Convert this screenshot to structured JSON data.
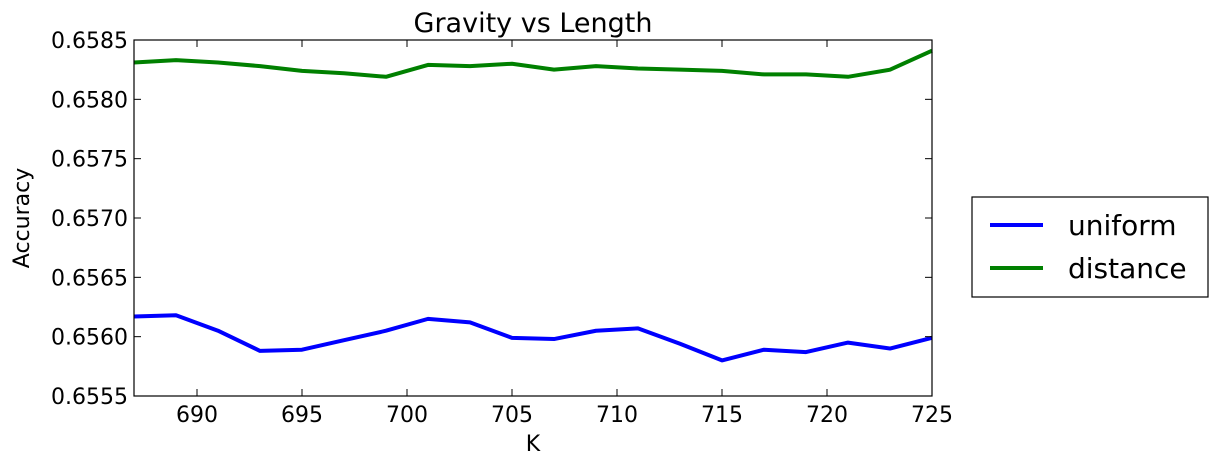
{
  "chart_data": {
    "type": "line",
    "title": "Gravity vs Length",
    "xlabel": "K",
    "ylabel": "Accuracy",
    "xlim": [
      687,
      725
    ],
    "ylim": [
      0.6555,
      0.6585
    ],
    "x_ticks": [
      "690",
      "695",
      "700",
      "705",
      "710",
      "715",
      "720",
      "725"
    ],
    "y_ticks": [
      "0.6555",
      "0.6560",
      "0.6565",
      "0.6570",
      "0.6575",
      "0.6580",
      "0.6585"
    ],
    "grid": false,
    "legend_position": "right, outside plot",
    "x": [
      687,
      689,
      691,
      693,
      695,
      697,
      699,
      701,
      703,
      705,
      707,
      709,
      711,
      713,
      715,
      717,
      719,
      721,
      723,
      725
    ],
    "series": [
      {
        "name": "uniform",
        "color": "#0000ff",
        "values": [
          0.65617,
          0.65618,
          0.65605,
          0.65588,
          0.65589,
          0.65597,
          0.65605,
          0.65615,
          0.65612,
          0.65599,
          0.65598,
          0.65605,
          0.65607,
          0.65594,
          0.6558,
          0.65589,
          0.65587,
          0.65595,
          0.6559,
          0.65599
        ]
      },
      {
        "name": "distance",
        "color": "#008000",
        "values": [
          0.65831,
          0.65833,
          0.65831,
          0.65828,
          0.65824,
          0.65822,
          0.65819,
          0.65829,
          0.65828,
          0.6583,
          0.65825,
          0.65828,
          0.65826,
          0.65825,
          0.65824,
          0.65821,
          0.65821,
          0.65819,
          0.65825,
          0.65841
        ]
      }
    ]
  }
}
